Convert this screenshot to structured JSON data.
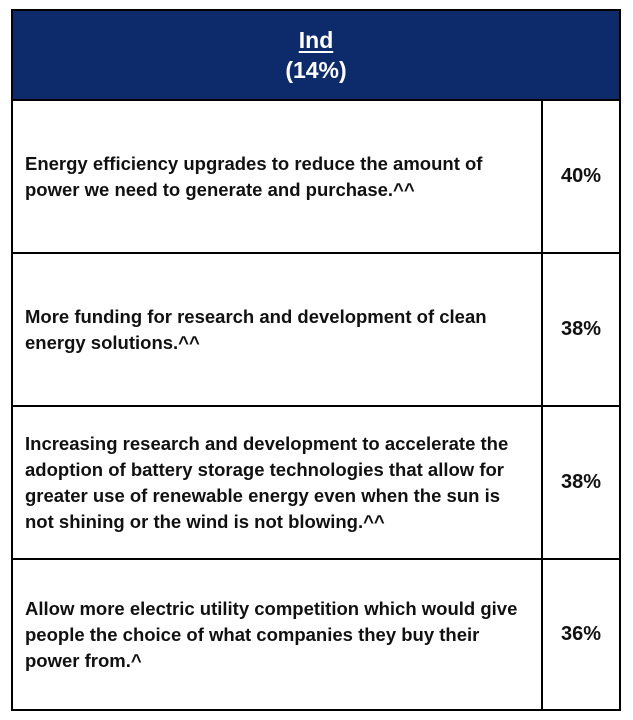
{
  "header": {
    "title": "Ind",
    "subtitle": "(14%)"
  },
  "rows": [
    {
      "label": "Energy efficiency upgrades to reduce the amount of power we need to generate and purchase.^^",
      "value": "40%"
    },
    {
      "label": "More funding for research and development of clean energy solutions.^^",
      "value": "38%"
    },
    {
      "label": "Increasing research and development to accelerate the adoption of battery storage technologies that allow for greater use of renewable energy even when the sun is not shining or the wind is not blowing.^^",
      "value": "38%"
    },
    {
      "label": "Allow more electric utility competition which would give people the choice of what companies they buy their power from.^",
      "value": "36%"
    }
  ],
  "colors": {
    "header_background": "#0d2b6b",
    "header_text": "#ffffff",
    "border": "#000000"
  }
}
